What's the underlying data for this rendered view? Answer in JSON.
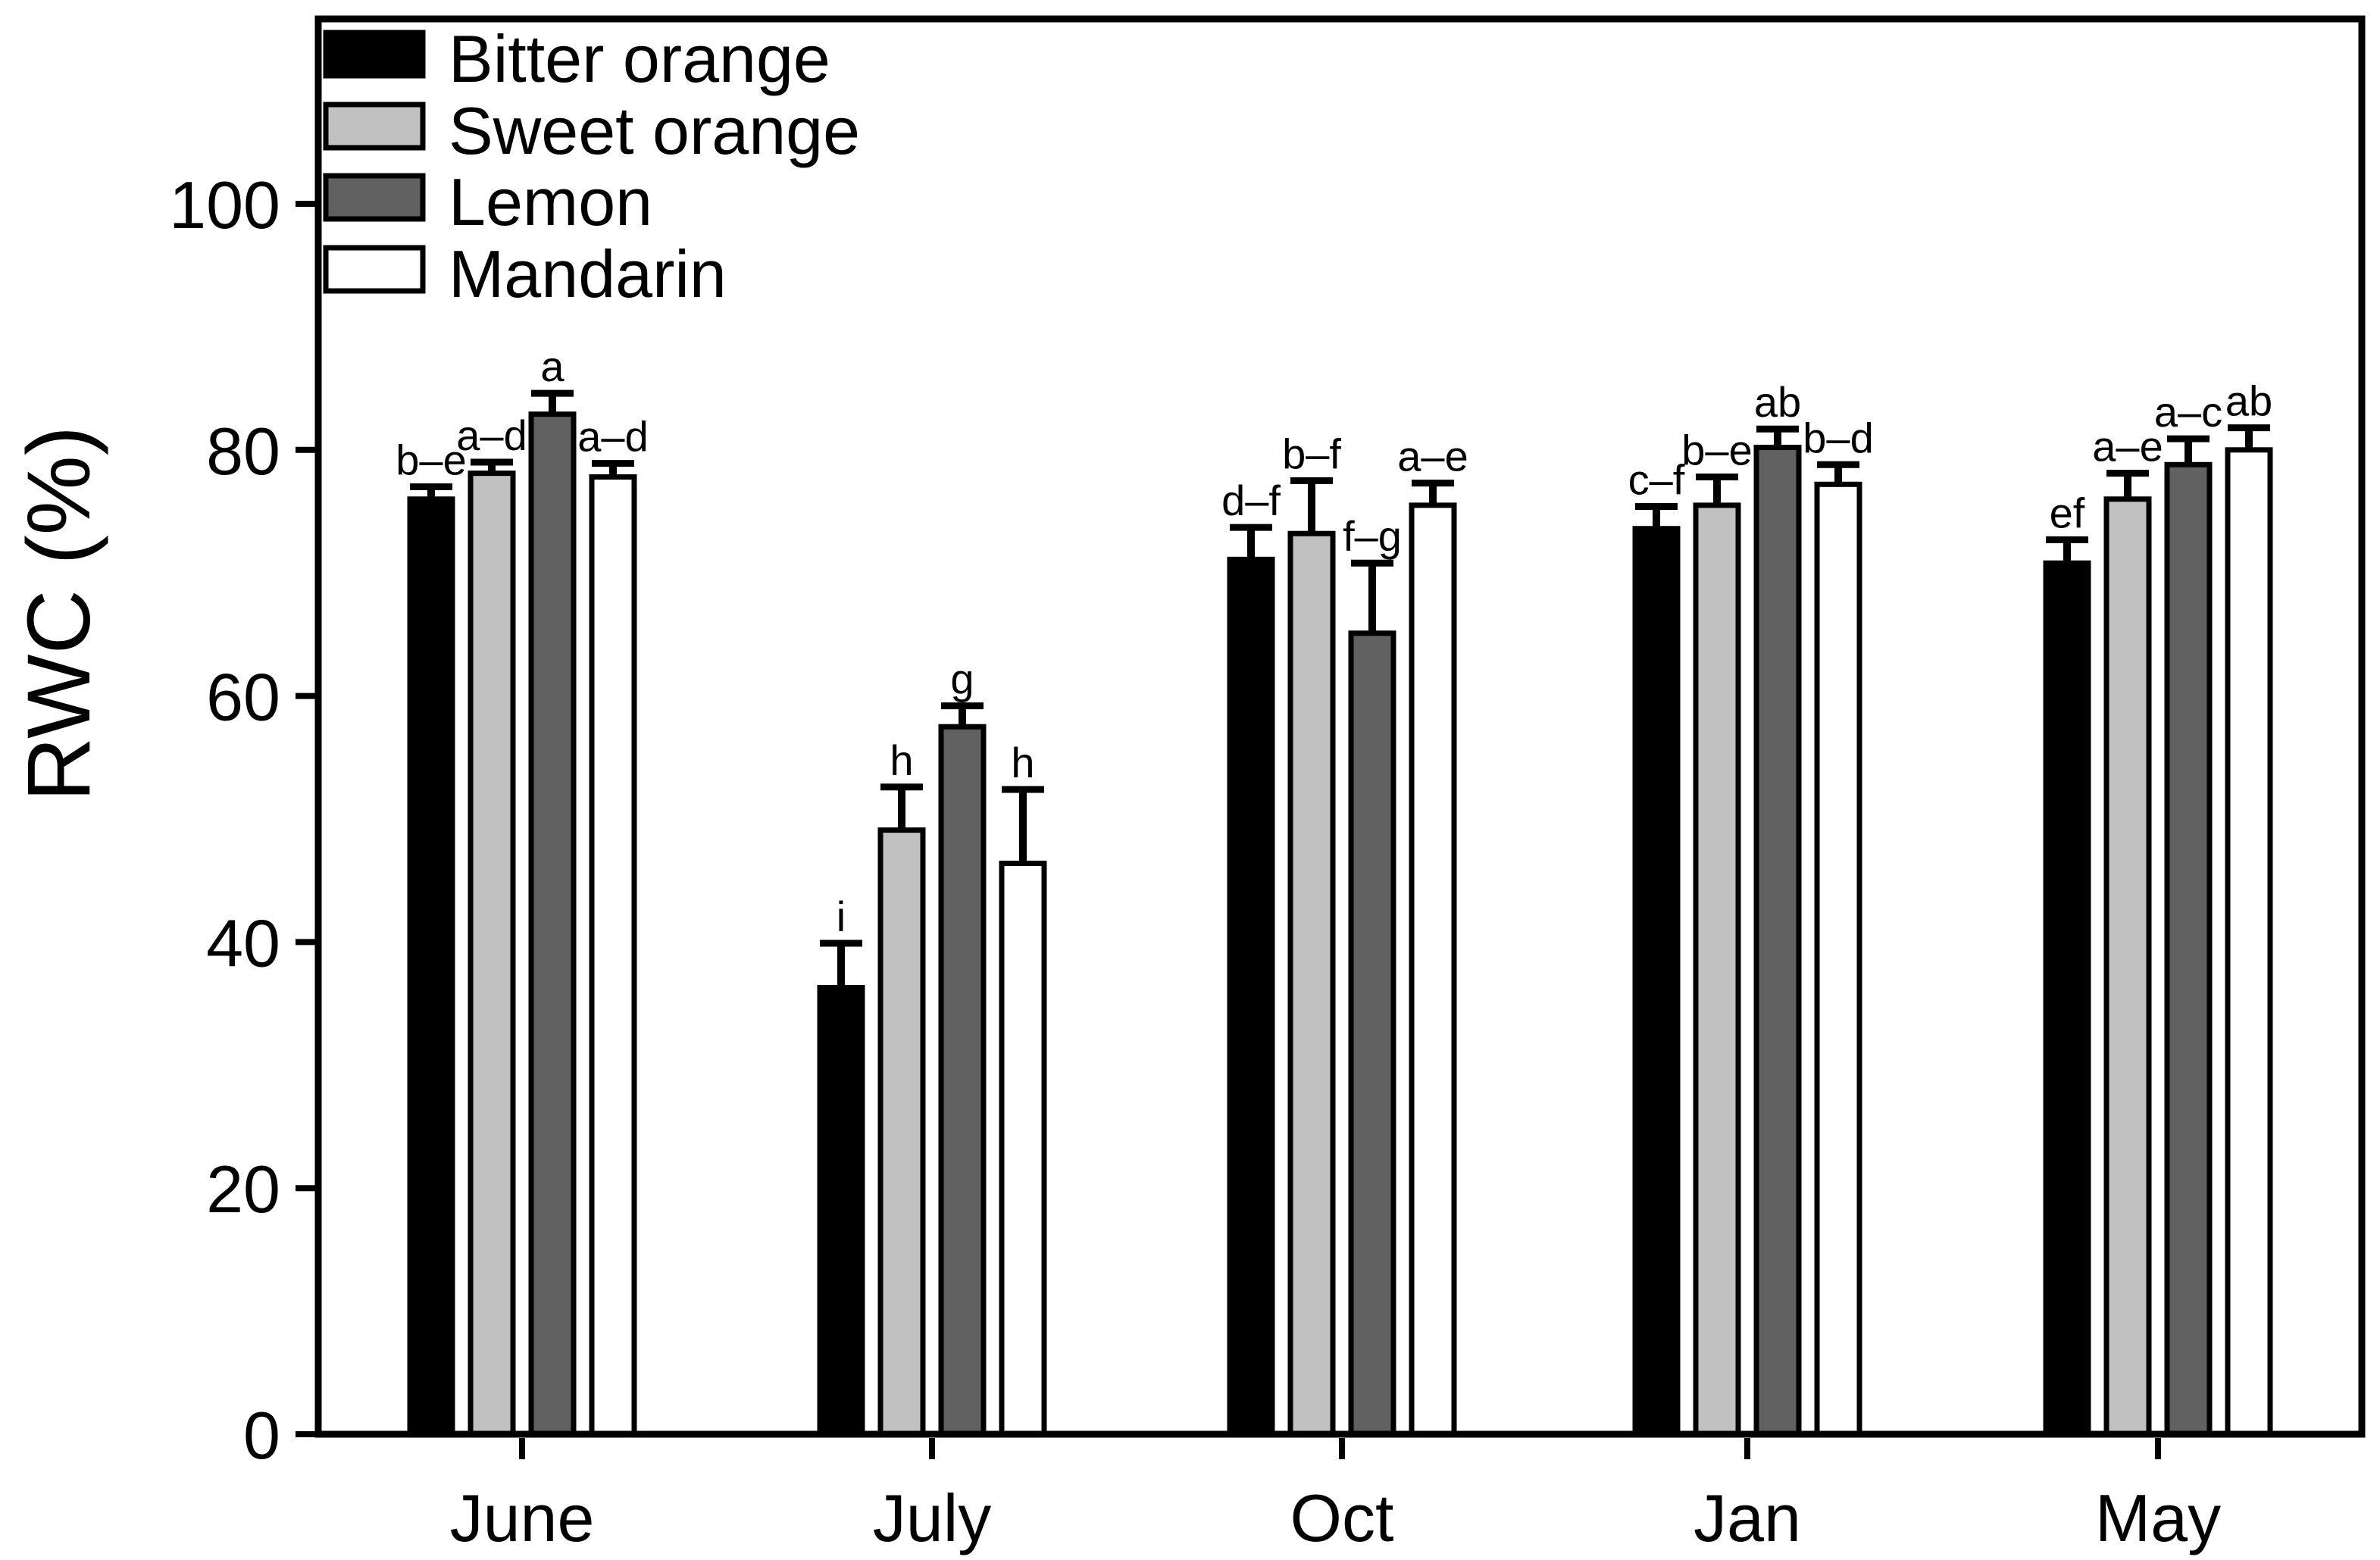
{
  "figure": {
    "background": "#ffffff",
    "axis_color": "#000000"
  },
  "chart_data": {
    "type": "bar",
    "title": "",
    "xlabel": "",
    "ylabel": "RWC (%)",
    "categories": [
      "June",
      "July",
      "Oct",
      "Jan",
      "May"
    ],
    "yticks": [
      0,
      20,
      40,
      60,
      80,
      100
    ],
    "ylim": [
      0,
      115
    ],
    "grid": false,
    "legend_position": "upper-left",
    "bar_border_color": "#000000",
    "error_bar_color": "#000000",
    "error_bar_direction": "up",
    "series": [
      {
        "name": "Bitter orange",
        "color": "#000000",
        "values": [
          76.0,
          36.3,
          71.1,
          73.6,
          70.8
        ],
        "errors": [
          1.0,
          3.6,
          2.6,
          1.8,
          1.9
        ],
        "letters": [
          "b–e",
          "i",
          "d–f",
          "c–f",
          "ef"
        ]
      },
      {
        "name": "Sweet orange",
        "color": "#c1c1c1",
        "values": [
          78.1,
          49.1,
          73.2,
          75.5,
          76.0
        ],
        "errors": [
          0.9,
          3.5,
          4.3,
          2.3,
          2.1
        ],
        "letters": [
          "a–d",
          "h",
          "b–f",
          "b–e",
          "a–e"
        ]
      },
      {
        "name": "Lemon",
        "color": "#606060",
        "values": [
          82.9,
          57.5,
          65.1,
          80.2,
          78.8
        ],
        "errors": [
          1.7,
          1.7,
          5.7,
          1.5,
          2.1
        ],
        "letters": [
          "a",
          "g",
          "f–g",
          "ab",
          "a–c"
        ]
      },
      {
        "name": "Mandarin",
        "color": "#ffffff",
        "values": [
          77.8,
          46.4,
          75.5,
          77.2,
          80.0
        ],
        "errors": [
          1.1,
          6.0,
          1.8,
          1.6,
          1.8
        ],
        "letters": [
          "a–d",
          "h",
          "a–e",
          "b–d",
          "ab"
        ]
      }
    ]
  }
}
